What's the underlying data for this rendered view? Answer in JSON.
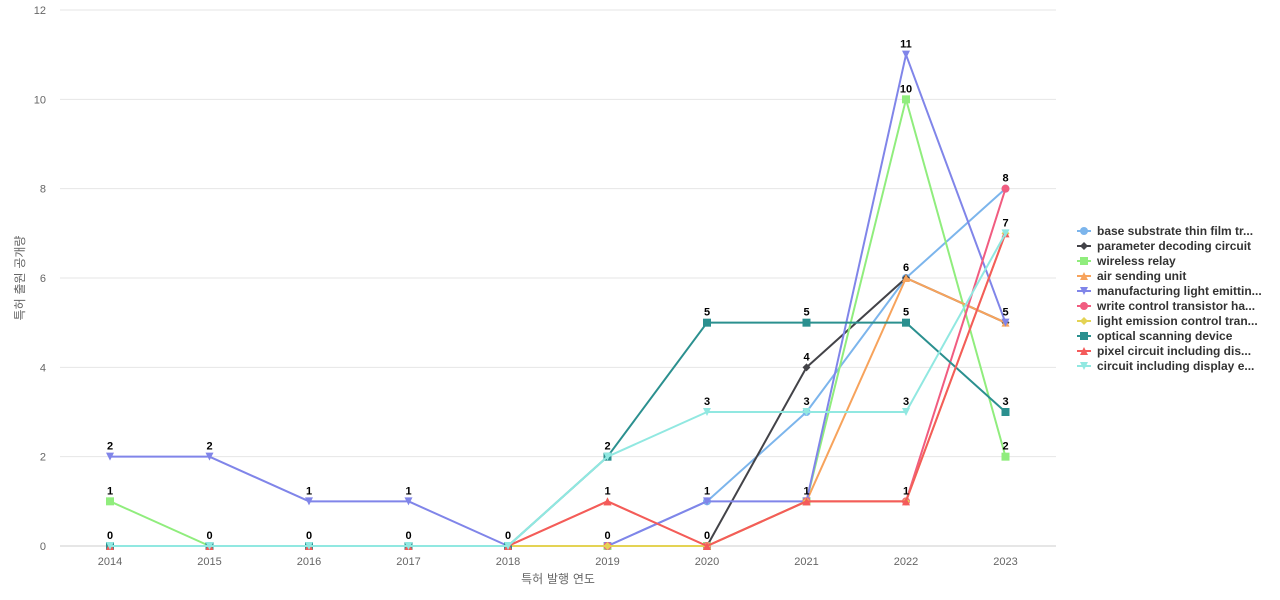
{
  "chart_data": {
    "type": "line",
    "title": "",
    "xlabel": "특허 발행 연도",
    "ylabel": "특허 출원 공개량",
    "x": [
      "2014",
      "2015",
      "2016",
      "2017",
      "2018",
      "2019",
      "2020",
      "2021",
      "2022",
      "2023"
    ],
    "ylim": [
      0,
      12
    ],
    "yticks": [
      0,
      2,
      4,
      6,
      8,
      10,
      12
    ],
    "grid": true,
    "legend_position": "right",
    "series": [
      {
        "name": "base substrate thin film tr...",
        "color": "#7cb5ec",
        "marker": "circle",
        "values": [
          0,
          0,
          0,
          0,
          0,
          0,
          1,
          3,
          6,
          8
        ]
      },
      {
        "name": "parameter decoding circuit",
        "color": "#434348",
        "marker": "diamond",
        "values": [
          0,
          0,
          0,
          0,
          0,
          0,
          0,
          4,
          6,
          5
        ]
      },
      {
        "name": "wireless relay",
        "color": "#90ed7d",
        "marker": "square",
        "values": [
          1,
          0,
          0,
          0,
          0,
          0,
          0,
          1,
          10,
          2
        ]
      },
      {
        "name": "air sending unit",
        "color": "#f7a35c",
        "marker": "triangle",
        "values": [
          0,
          0,
          0,
          0,
          0,
          1,
          0,
          1,
          6,
          5
        ]
      },
      {
        "name": "manufacturing light emittin...",
        "color": "#8085e9",
        "marker": "triangle-down",
        "values": [
          2,
          2,
          1,
          1,
          0,
          0,
          1,
          1,
          11,
          5
        ]
      },
      {
        "name": "write control transistor ha...",
        "color": "#f15c80",
        "marker": "circle",
        "values": [
          0,
          0,
          0,
          0,
          0,
          0,
          0,
          1,
          1,
          8
        ]
      },
      {
        "name": "light emission control tran...",
        "color": "#e4d354",
        "marker": "diamond",
        "values": [
          0,
          0,
          0,
          0,
          0,
          0,
          0,
          1,
          1,
          7
        ]
      },
      {
        "name": "optical scanning device",
        "color": "#2b908f",
        "marker": "square",
        "values": [
          0,
          0,
          0,
          0,
          0,
          2,
          5,
          5,
          5,
          3
        ]
      },
      {
        "name": "pixel circuit including dis...",
        "color": "#f45b5b",
        "marker": "triangle",
        "values": [
          0,
          0,
          0,
          0,
          0,
          1,
          0,
          1,
          1,
          7
        ]
      },
      {
        "name": "circuit including display e...",
        "color": "#91e8e1",
        "marker": "triangle-down",
        "values": [
          0,
          0,
          0,
          0,
          0,
          2,
          3,
          3,
          3,
          7
        ]
      }
    ],
    "data_labels": [
      {
        "x": "2014",
        "value": 2
      },
      {
        "x": "2014",
        "value": 1
      },
      {
        "x": "2014",
        "value": 0
      },
      {
        "x": "2015",
        "value": 2
      },
      {
        "x": "2015",
        "value": 0
      },
      {
        "x": "2016",
        "value": 1
      },
      {
        "x": "2016",
        "value": 0
      },
      {
        "x": "2017",
        "value": 1
      },
      {
        "x": "2017",
        "value": 0
      },
      {
        "x": "2018",
        "value": 0
      },
      {
        "x": "2019",
        "value": 2
      },
      {
        "x": "2019",
        "value": 1
      },
      {
        "x": "2019",
        "value": 0
      },
      {
        "x": "2020",
        "value": 5
      },
      {
        "x": "2020",
        "value": 3
      },
      {
        "x": "2020",
        "value": 1
      },
      {
        "x": "2020",
        "value": 0
      },
      {
        "x": "2021",
        "value": 5
      },
      {
        "x": "2021",
        "value": 4
      },
      {
        "x": "2021",
        "value": 3
      },
      {
        "x": "2021",
        "value": 1
      },
      {
        "x": "2022",
        "value": 11
      },
      {
        "x": "2022",
        "value": 10
      },
      {
        "x": "2022",
        "value": 6
      },
      {
        "x": "2022",
        "value": 5
      },
      {
        "x": "2022",
        "value": 3
      },
      {
        "x": "2022",
        "value": 1
      },
      {
        "x": "2023",
        "value": 8
      },
      {
        "x": "2023",
        "value": 7
      },
      {
        "x": "2023",
        "value": 5
      },
      {
        "x": "2023",
        "value": 3
      },
      {
        "x": "2023",
        "value": 2
      }
    ]
  }
}
